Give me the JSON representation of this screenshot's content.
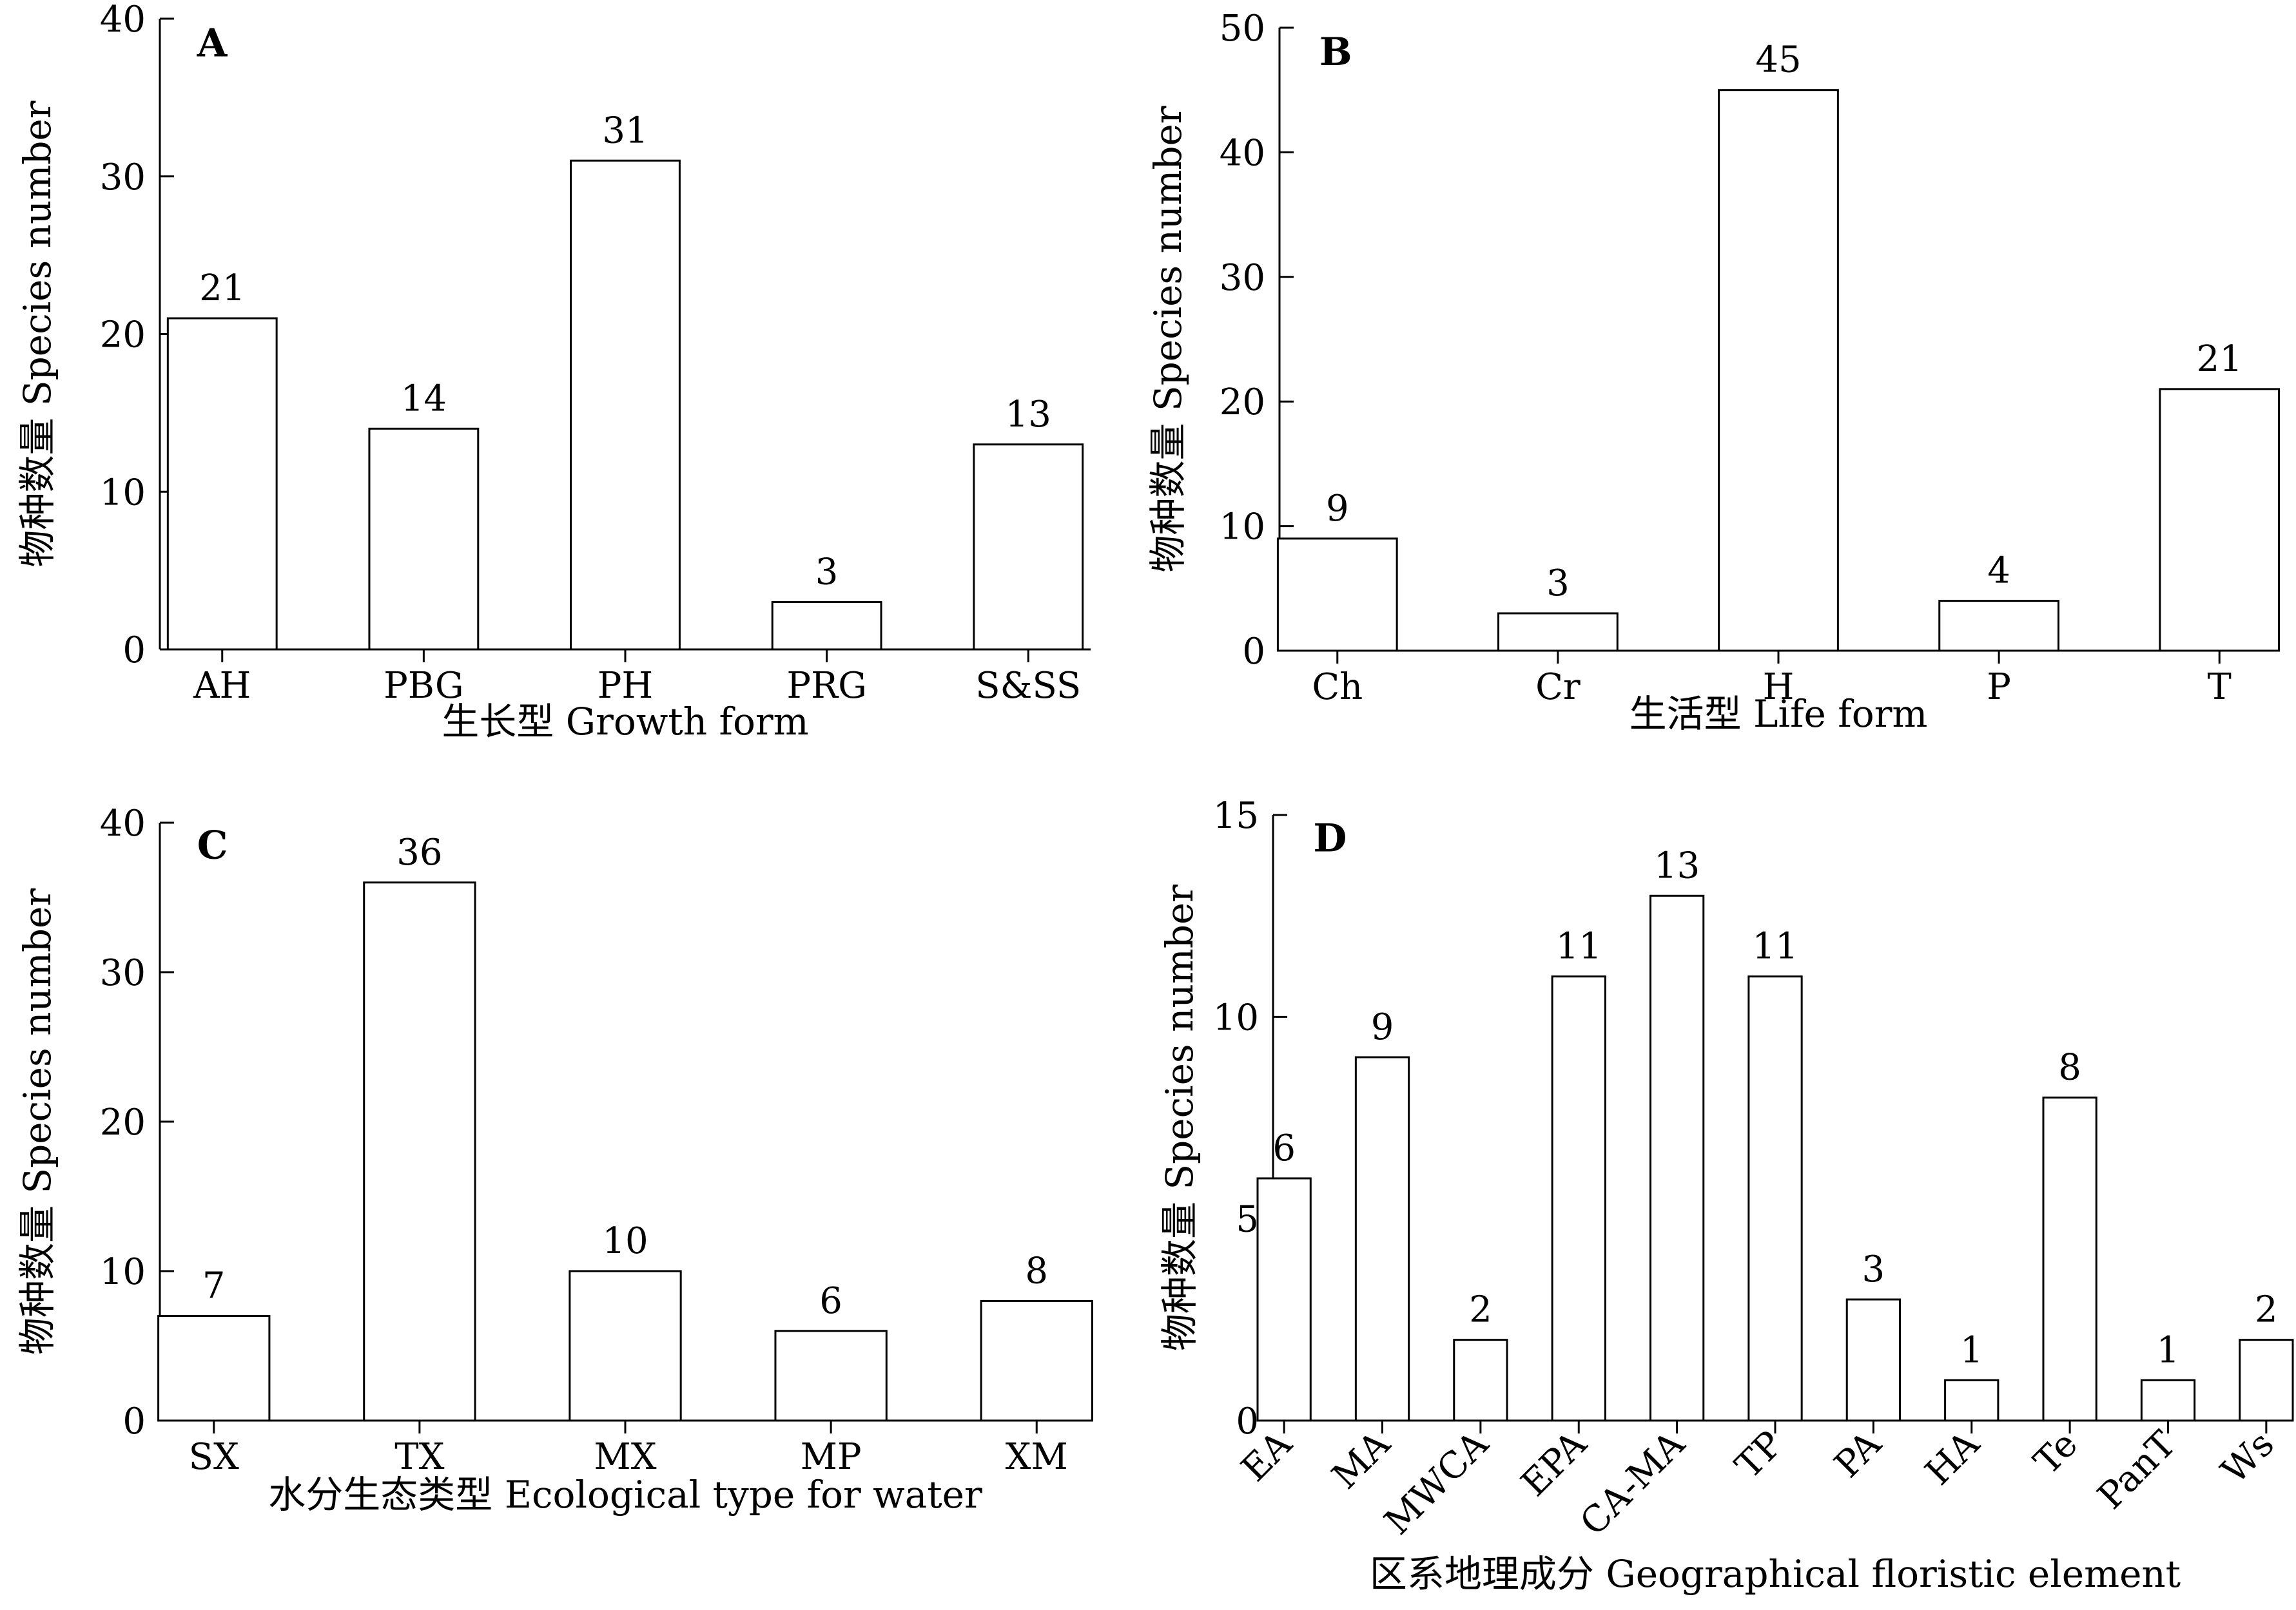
{
  "chart_data": [
    {
      "type": "bar",
      "panel_label": "A",
      "categories": [
        "AH",
        "PBG",
        "PH",
        "PRG",
        "S&SS"
      ],
      "values": [
        21,
        14,
        31,
        3,
        13
      ],
      "xlabel": "生长型 Growth form",
      "ylabel": "物种数量 Species number",
      "ylim": [
        0,
        40
      ],
      "yticks": [
        0,
        10,
        20,
        30,
        40
      ],
      "grid": false,
      "legend": "none"
    },
    {
      "type": "bar",
      "panel_label": "B",
      "categories": [
        "Ch",
        "Cr",
        "H",
        "P",
        "T"
      ],
      "values": [
        9,
        3,
        45,
        4,
        21
      ],
      "xlabel": "生活型 Life form",
      "ylabel": "物种数量 Species number",
      "ylim": [
        0,
        50
      ],
      "yticks": [
        0,
        10,
        20,
        30,
        40,
        50
      ],
      "grid": false,
      "legend": "none"
    },
    {
      "type": "bar",
      "panel_label": "C",
      "categories": [
        "SX",
        "TX",
        "MX",
        "MP",
        "XM"
      ],
      "values": [
        7,
        36,
        10,
        6,
        8
      ],
      "xlabel": "水分生态类型 Ecological type for water",
      "ylabel": "物种数量 Species number",
      "ylim": [
        0,
        40
      ],
      "yticks": [
        0,
        10,
        20,
        30,
        40
      ],
      "grid": false,
      "legend": "none"
    },
    {
      "type": "bar",
      "panel_label": "D",
      "categories": [
        "EA",
        "MA",
        "MWCA",
        "EPA",
        "CA-MA",
        "TP",
        "PA",
        "HA",
        "Te",
        "PanT",
        "Ws"
      ],
      "values": [
        6,
        9,
        2,
        11,
        13,
        11,
        3,
        1,
        8,
        1,
        2
      ],
      "xlabel": "区系地理成分 Geographical floristic element",
      "ylabel": "物种数量 Species number",
      "ylim": [
        0,
        15
      ],
      "yticks": [
        0,
        5,
        10,
        15
      ],
      "grid": false,
      "legend": "none"
    }
  ]
}
